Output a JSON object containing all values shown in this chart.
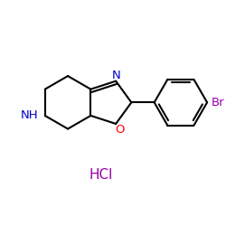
{
  "background_color": "#ffffff",
  "bond_color": "#000000",
  "N_color": "#0000cc",
  "O_color": "#ff0000",
  "Br_color": "#9900aa",
  "HCl_color": "#9900aa",
  "NH_color": "#0000cc",
  "line_width": 1.5,
  "HCl_label": "HCl",
  "N_label": "N",
  "O_label": "O",
  "Br_label": "Br",
  "NH_label": "NH"
}
